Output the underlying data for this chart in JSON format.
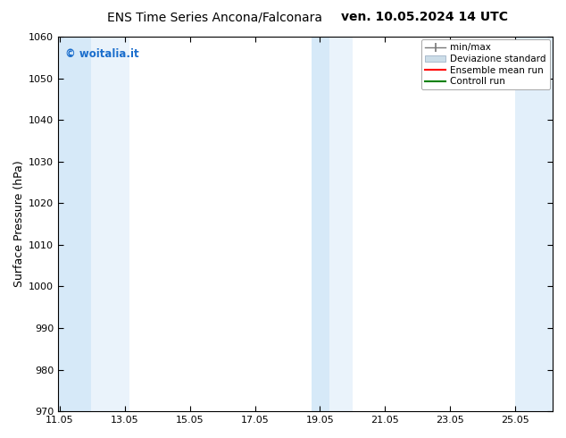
{
  "title_left": "ENS Time Series Ancona/Falconara",
  "title_right": "ven. 10.05.2024 14 UTC",
  "ylabel": "Surface Pressure (hPa)",
  "ylim": [
    970,
    1060
  ],
  "yticks": [
    970,
    980,
    990,
    1000,
    1010,
    1020,
    1030,
    1040,
    1050,
    1060
  ],
  "xlim_start": 11.0,
  "xlim_end": 26.2,
  "xticks": [
    11.05,
    13.05,
    15.05,
    17.05,
    19.05,
    21.05,
    23.05,
    25.05
  ],
  "xticklabels": [
    "11.05",
    "13.05",
    "15.05",
    "17.05",
    "19.05",
    "21.05",
    "23.05",
    "25.05"
  ],
  "shaded_bands": [
    {
      "x_start": 11.0,
      "x_end": 12.0,
      "color": "#d6e9f8",
      "alpha": 1.0
    },
    {
      "x_start": 12.0,
      "x_end": 13.2,
      "color": "#d6e9f8",
      "alpha": 0.5
    },
    {
      "x_start": 18.8,
      "x_end": 19.35,
      "color": "#d6e9f8",
      "alpha": 1.0
    },
    {
      "x_start": 19.35,
      "x_end": 20.05,
      "color": "#d6e9f8",
      "alpha": 0.5
    },
    {
      "x_start": 25.05,
      "x_end": 26.2,
      "color": "#d6e9f8",
      "alpha": 0.7
    }
  ],
  "watermark_text": "© woitalia.it",
  "watermark_color": "#1a6dcc",
  "legend_entries": [
    {
      "label": "min/max",
      "type": "errorbar",
      "color": "#888888"
    },
    {
      "label": "Deviazione standard",
      "type": "fillbetween",
      "facecolor": "#ccdde8",
      "edgecolor": "#aabbcc"
    },
    {
      "label": "Ensemble mean run",
      "type": "line",
      "color": "red"
    },
    {
      "label": "Controll run",
      "type": "line",
      "color": "green"
    }
  ],
  "bg_color": "#ffffff",
  "title_fontsize": 10,
  "tick_fontsize": 8,
  "ylabel_fontsize": 9,
  "legend_fontsize": 7.5
}
